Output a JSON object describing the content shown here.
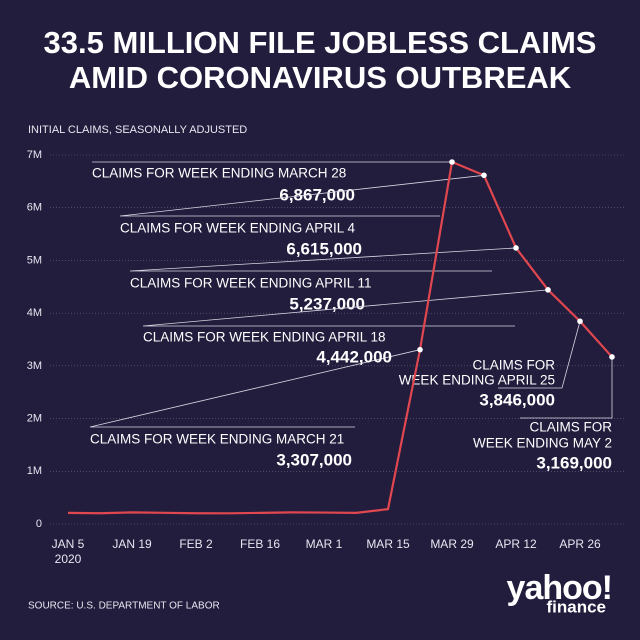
{
  "chart_data": {
    "type": "line",
    "title": [
      "33.5 MILLION FILE JOBLESS CLAIMS",
      "AMID CORONAVIRUS OUTBREAK"
    ],
    "subtitle": "INITIAL CLAIMS, SEASONALLY ADJUSTED",
    "source": "SOURCE:  U.S. DEPARTMENT OF LABOR",
    "brand": "yahoo!",
    "brand_sub": "finance",
    "categories": [
      "JAN 5",
      null,
      "JAN 19",
      null,
      "FEB 2",
      null,
      "FEB 16",
      null,
      "MAR 1",
      null,
      "MAR 15",
      null,
      "MAR 29",
      null,
      "APR 12",
      null,
      "APR 26",
      null
    ],
    "category_year": "2020",
    "series": [
      {
        "color": "#e0474f",
        "values": [
          211000,
          204000,
          220000,
          212000,
          204000,
          203000,
          211000,
          220000,
          217000,
          211000,
          282000,
          3307000,
          6867000,
          6615000,
          5237000,
          4442000,
          3846000,
          3169000
        ],
        "value_labels": [
          null,
          null,
          null,
          null,
          null,
          null,
          null,
          null,
          null,
          null,
          null,
          "3,307,000",
          "6,867,000",
          "6,615,000",
          "5,237,000",
          "4,442,000",
          "3,846,000",
          "3,169,000"
        ],
        "point_labels": [
          null,
          null,
          null,
          null,
          null,
          null,
          null,
          null,
          null,
          null,
          null,
          [
            "CLAIMS FOR WEEK ENDING MARCH 21"
          ],
          [
            "CLAIMS FOR WEEK ENDING MARCH 28"
          ],
          [
            "CLAIMS FOR WEEK ENDING APRIL 4"
          ],
          [
            "CLAIMS FOR WEEK ENDING APRIL 11"
          ],
          [
            "CLAIMS FOR WEEK ENDING APRIL 18"
          ],
          [
            "CLAIMS FOR",
            "WEEK ENDING APRIL 25"
          ],
          [
            "CLAIMS FOR",
            "WEEK ENDING MAY 2"
          ]
        ]
      }
    ],
    "ylim": [
      0,
      7000000
    ],
    "yticks": [
      0,
      {
        "value": 1000000,
        "label": "1M"
      },
      {
        "value": 2000000,
        "label": "2M"
      },
      {
        "value": 3000000,
        "label": "3M"
      },
      {
        "value": 4000000,
        "label": "4M"
      },
      {
        "value": 5000000,
        "label": "5M"
      },
      {
        "value": 6000000,
        "label": "6M"
      },
      {
        "value": 7000000,
        "label": "7M"
      }
    ],
    "grid": true
  }
}
